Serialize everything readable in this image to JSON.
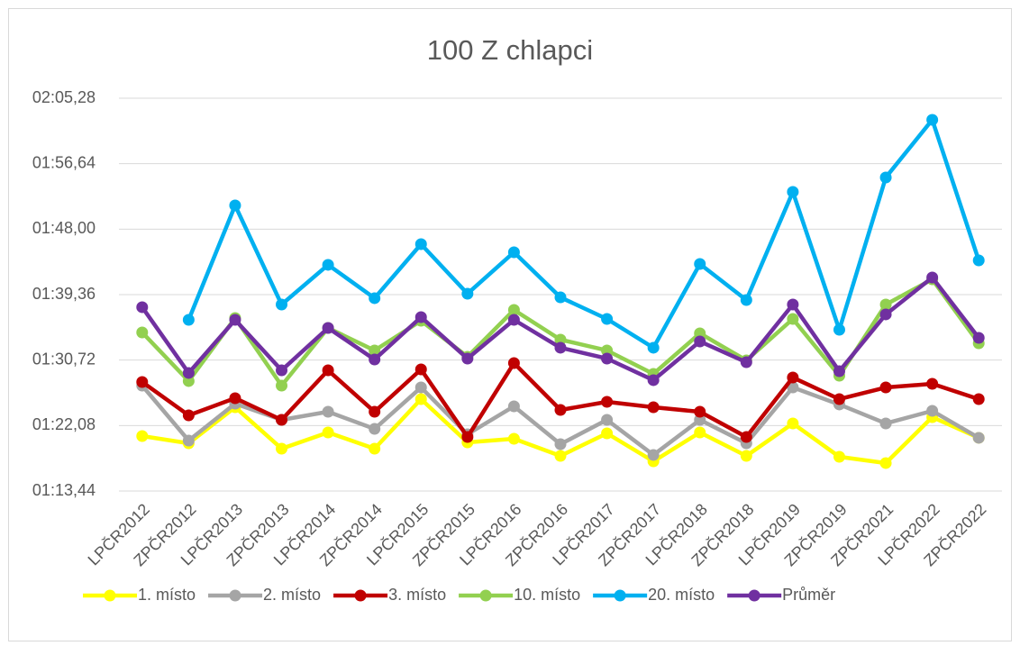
{
  "chart_data": {
    "type": "line",
    "title": "100 Z chlapci",
    "categories": [
      "LPČR2012",
      "ZPČR2012",
      "LPČR2013",
      "ZPČR2013",
      "LPČR2014",
      "ZPČR2014",
      "LPČR2015",
      "ZPČR2015",
      "LPČR2016",
      "ZPČR2016",
      "LPČR2017",
      "ZPČR2017",
      "LPČR2018",
      "ZPČR2018",
      "LPČR2019",
      "ZPČR2019",
      "ZPČR2021",
      "LPČR2022",
      "ZPČR2022"
    ],
    "series": [
      {
        "name": "1. místo",
        "color": "#FFFF00",
        "values": [
          80.69,
          79.74,
          84.5,
          79.03,
          81.17,
          79.03,
          85.57,
          79.86,
          80.34,
          78.08,
          81.05,
          77.36,
          81.17,
          78.08,
          82.36,
          77.96,
          77.13,
          83.19,
          80.46
        ]
      },
      {
        "name": "2. místo",
        "color": "#A5A5A5",
        "values": [
          87.35,
          80.1,
          84.97,
          82.83,
          83.9,
          81.64,
          87.11,
          80.93,
          84.62,
          79.62,
          82.83,
          78.2,
          82.83,
          79.74,
          87.11,
          84.86,
          82.36,
          84.02,
          80.46
        ]
      },
      {
        "name": "3. místo",
        "color": "#C00000",
        "values": [
          87.83,
          83.43,
          85.69,
          82.83,
          89.37,
          83.9,
          89.49,
          80.57,
          90.32,
          84.14,
          85.21,
          84.5,
          83.9,
          80.57,
          88.42,
          85.57,
          87.11,
          87.59,
          85.57
        ]
      },
      {
        "name": "10. místo",
        "color": "#92D050",
        "values": [
          94.37,
          87.95,
          96.27,
          87.35,
          94.96,
          91.99,
          95.91,
          91.16,
          97.34,
          93.42,
          91.99,
          88.9,
          94.25,
          90.68,
          96.15,
          88.66,
          98.05,
          101.38,
          92.94
        ]
      },
      {
        "name": "20. místo",
        "color": "#00B0F0",
        "values": [
          null,
          96.03,
          111.13,
          98.05,
          103.29,
          98.89,
          106.02,
          99.48,
          104.95,
          99.0,
          96.15,
          92.35,
          103.4,
          98.65,
          112.92,
          94.72,
          114.82,
          122.43,
          103.88
        ]
      },
      {
        "name": "Průměr",
        "color": "#7030A0",
        "values": [
          97.7,
          89.02,
          96.03,
          89.37,
          94.96,
          90.8,
          96.39,
          90.92,
          96.03,
          92.35,
          90.92,
          88.07,
          93.18,
          90.44,
          98.05,
          89.25,
          96.75,
          101.62,
          93.65
        ]
      }
    ],
    "ylim": [
      73.44,
      125.28
    ],
    "yticks": [
      {
        "value": 73.44,
        "label": "01:13,44"
      },
      {
        "value": 82.08,
        "label": "01:22,08"
      },
      {
        "value": 90.72,
        "label": "01:30,72"
      },
      {
        "value": 99.36,
        "label": "01:39,36"
      },
      {
        "value": 108,
        "label": "01:48,00"
      },
      {
        "value": 116.64,
        "label": "01:56,64"
      },
      {
        "value": 125.28,
        "label": "02:05,28"
      }
    ],
    "grid": true,
    "legend": "bottom"
  }
}
